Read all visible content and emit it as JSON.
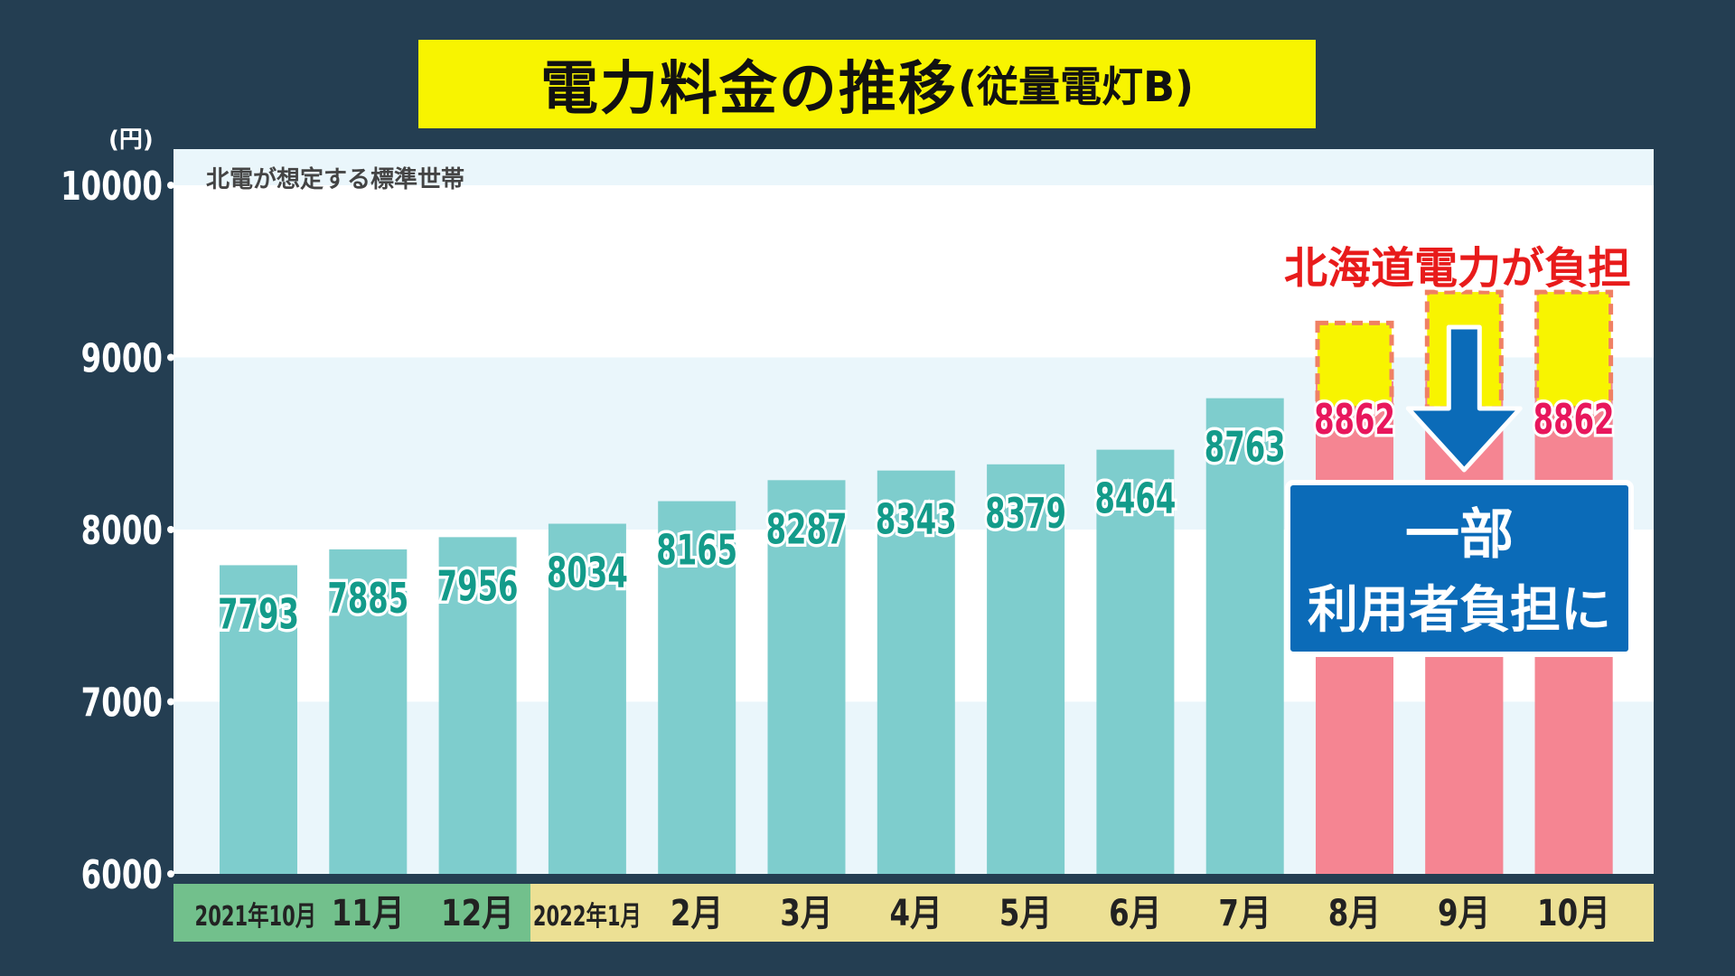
{
  "title": {
    "main": "電力料金の推移",
    "sub": "(従量電灯B)"
  },
  "unit": "(円)",
  "chart_data": {
    "type": "bar",
    "subtitle": "北電が想定する標準世帯",
    "categories": [
      "2021年10月",
      "11月",
      "12月",
      "2022年1月",
      "2月",
      "3月",
      "4月",
      "5月",
      "6月",
      "7月",
      "8月",
      "9月",
      "10月"
    ],
    "values": [
      7793,
      7885,
      7956,
      8034,
      8165,
      8287,
      8343,
      8379,
      8464,
      8763,
      8862,
      8862,
      8862
    ],
    "value_labels": [
      "7793",
      "7885",
      "7956",
      "8034",
      "8165",
      "8287",
      "8343",
      "8379",
      "8464",
      "8763",
      "8862",
      "",
      "8862"
    ],
    "hokuden_burden_tops": [
      null,
      null,
      null,
      null,
      null,
      null,
      null,
      null,
      null,
      null,
      9200,
      9380,
      9380
    ],
    "ylim": [
      6000,
      10000
    ],
    "yticks": [
      6000,
      7000,
      8000,
      9000,
      10000
    ],
    "ytick_labels": [
      "6000",
      "7000",
      "8000",
      "9000",
      "10000"
    ],
    "annotations": {
      "burden": "北海道電力が負担",
      "callout_line1": "一部",
      "callout_line2": "利用者負担に"
    },
    "colors": {
      "teal_bar": "#7ecdcd",
      "pink_bar": "#f58592",
      "teal_label": "#139b8a",
      "pink_label": "#e8175d",
      "burden_fill": "#f8f400",
      "burden_border": "#f08064",
      "burden_text": "#e81b1b",
      "callout_fill": "#0b6bb8",
      "cat_green": "#72c08c",
      "cat_yellow": "#ece094",
      "band_light": "#eaf6fb",
      "band_white": "#ffffff"
    }
  }
}
